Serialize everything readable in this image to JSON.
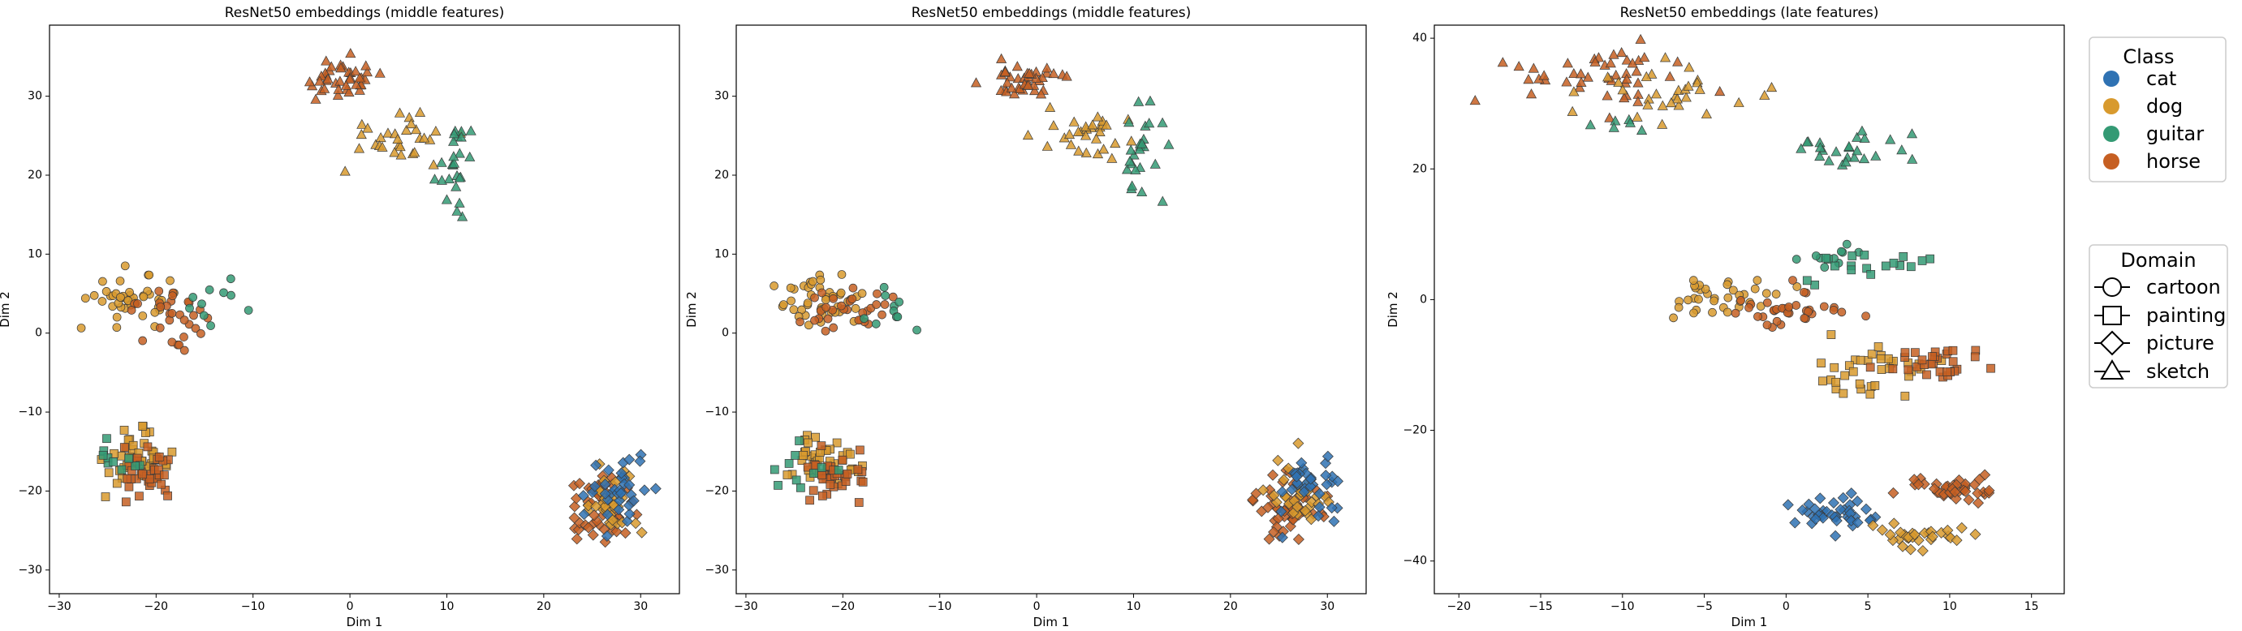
{
  "chart_data": [
    {
      "type": "scatter",
      "title": "ResNet50 embeddings (middle features)",
      "xlabel": "Dim 1",
      "ylabel": "Dim 2",
      "xlim": [
        -31,
        34
      ],
      "ylim": [
        -33,
        39
      ],
      "xticks": [
        -30,
        -20,
        -10,
        0,
        10,
        20,
        30
      ],
      "yticks": [
        -30,
        -20,
        -10,
        0,
        10,
        20,
        30
      ],
      "clusters": [
        {
          "label_class": "horse",
          "domain": "sketch",
          "center": [
            -1,
            32
          ],
          "spread": [
            4,
            2.5
          ],
          "n": 40
        },
        {
          "label_class": "dog",
          "domain": "sketch",
          "center": [
            5,
            25
          ],
          "spread": [
            5,
            3
          ],
          "n": 30
        },
        {
          "label_class": "guitar",
          "domain": "sketch",
          "center": [
            11,
            22
          ],
          "spread": [
            2,
            5
          ],
          "n": 25
        },
        {
          "label_class": "dog",
          "domain": "cartoon",
          "center": [
            -22,
            4
          ],
          "spread": [
            4,
            3
          ],
          "n": 45
        },
        {
          "label_class": "horse",
          "domain": "cartoon",
          "center": [
            -19,
            3
          ],
          "spread": [
            4,
            3
          ],
          "n": 30
        },
        {
          "label_class": "guitar",
          "domain": "cartoon",
          "center": [
            -14,
            3
          ],
          "spread": [
            3,
            3
          ],
          "n": 10
        },
        {
          "label_class": "dog",
          "domain": "painting",
          "center": [
            -22,
            -16
          ],
          "spread": [
            3,
            3
          ],
          "n": 40
        },
        {
          "label_class": "horse",
          "domain": "painting",
          "center": [
            -21,
            -18
          ],
          "spread": [
            3,
            3
          ],
          "n": 35
        },
        {
          "label_class": "guitar",
          "domain": "painting",
          "center": [
            -24,
            -17
          ],
          "spread": [
            3,
            3
          ],
          "n": 10
        },
        {
          "label_class": "horse",
          "domain": "picture",
          "center": [
            26,
            -22
          ],
          "spread": [
            3,
            4
          ],
          "n": 50
        },
        {
          "label_class": "dog",
          "domain": "picture",
          "center": [
            27,
            -21
          ],
          "spread": [
            3,
            4
          ],
          "n": 30
        },
        {
          "label_class": "cat",
          "domain": "picture",
          "center": [
            28,
            -20
          ],
          "spread": [
            3,
            4
          ],
          "n": 35
        }
      ]
    },
    {
      "type": "scatter",
      "title": "ResNet50 embeddings (middle features)",
      "xlabel": "Dim 1",
      "ylabel": "Dim 2",
      "xlim": [
        -31,
        34
      ],
      "ylim": [
        -33,
        39
      ],
      "xticks": [
        -30,
        -20,
        -10,
        0,
        10,
        20,
        30
      ],
      "yticks": [
        -30,
        -20,
        -10,
        0,
        10,
        20,
        30
      ],
      "clusters": [
        {
          "label_class": "horse",
          "domain": "sketch",
          "center": [
            -1,
            32
          ],
          "spread": [
            4,
            2.5
          ],
          "n": 40
        },
        {
          "label_class": "dog",
          "domain": "sketch",
          "center": [
            5,
            25
          ],
          "spread": [
            5,
            3
          ],
          "n": 30
        },
        {
          "label_class": "guitar",
          "domain": "sketch",
          "center": [
            11,
            22
          ],
          "spread": [
            2,
            5
          ],
          "n": 25
        },
        {
          "label_class": "dog",
          "domain": "cartoon",
          "center": [
            -22,
            4
          ],
          "spread": [
            4,
            3
          ],
          "n": 45
        },
        {
          "label_class": "horse",
          "domain": "cartoon",
          "center": [
            -19,
            3
          ],
          "spread": [
            4,
            3
          ],
          "n": 30
        },
        {
          "label_class": "guitar",
          "domain": "cartoon",
          "center": [
            -14,
            3
          ],
          "spread": [
            3,
            3
          ],
          "n": 10
        },
        {
          "label_class": "dog",
          "domain": "painting",
          "center": [
            -22,
            -16
          ],
          "spread": [
            3,
            3
          ],
          "n": 40
        },
        {
          "label_class": "horse",
          "domain": "painting",
          "center": [
            -21,
            -18
          ],
          "spread": [
            3,
            3
          ],
          "n": 35
        },
        {
          "label_class": "guitar",
          "domain": "painting",
          "center": [
            -24,
            -17
          ],
          "spread": [
            3,
            3
          ],
          "n": 10
        },
        {
          "label_class": "horse",
          "domain": "picture",
          "center": [
            26,
            -22
          ],
          "spread": [
            3,
            4
          ],
          "n": 50
        },
        {
          "label_class": "dog",
          "domain": "picture",
          "center": [
            27,
            -21
          ],
          "spread": [
            3,
            4
          ],
          "n": 30
        },
        {
          "label_class": "cat",
          "domain": "picture",
          "center": [
            28,
            -20
          ],
          "spread": [
            3,
            4
          ],
          "n": 35
        }
      ]
    },
    {
      "type": "scatter",
      "title": "ResNet50 embeddings (late features)",
      "xlabel": "Dim 1",
      "ylabel": "Dim 2",
      "xlim": [
        -21.5,
        17
      ],
      "ylim": [
        -45,
        42
      ],
      "xticks": [
        -20,
        -15,
        -10,
        -5,
        0,
        5,
        10,
        15
      ],
      "yticks": [
        -40,
        -20,
        0,
        20,
        40
      ],
      "clusters": [
        {
          "label_class": "horse",
          "domain": "sketch",
          "center": [
            -12,
            34
          ],
          "spread": [
            5,
            4
          ],
          "n": 45
        },
        {
          "label_class": "dog",
          "domain": "sketch",
          "center": [
            -8,
            31
          ],
          "spread": [
            5,
            4
          ],
          "n": 30
        },
        {
          "label_class": "guitar",
          "domain": "sketch",
          "center": [
            4,
            23
          ],
          "spread": [
            3,
            2.5
          ],
          "n": 25
        },
        {
          "label_class": "guitar",
          "domain": "sketch",
          "center": [
            -11,
            27
          ],
          "spread": [
            1.5,
            1.5
          ],
          "n": 6
        },
        {
          "label_class": "dog",
          "domain": "cartoon",
          "center": [
            -4,
            0
          ],
          "spread": [
            3,
            3
          ],
          "n": 35
        },
        {
          "label_class": "horse",
          "domain": "cartoon",
          "center": [
            0,
            -2
          ],
          "spread": [
            3,
            3
          ],
          "n": 35
        },
        {
          "label_class": "guitar",
          "domain": "cartoon",
          "center": [
            3,
            6
          ],
          "spread": [
            3,
            3
          ],
          "n": 10
        },
        {
          "label_class": "dog",
          "domain": "painting",
          "center": [
            5,
            -10
          ],
          "spread": [
            4,
            4
          ],
          "n": 35
        },
        {
          "label_class": "horse",
          "domain": "painting",
          "center": [
            9,
            -10
          ],
          "spread": [
            3,
            3
          ],
          "n": 30
        },
        {
          "label_class": "guitar",
          "domain": "painting",
          "center": [
            5,
            5
          ],
          "spread": [
            4,
            4
          ],
          "n": 18
        },
        {
          "label_class": "cat",
          "domain": "picture",
          "center": [
            3,
            -33
          ],
          "spread": [
            2.5,
            2.5
          ],
          "n": 40
        },
        {
          "label_class": "horse",
          "domain": "picture",
          "center": [
            10,
            -29
          ],
          "spread": [
            3,
            2
          ],
          "n": 40
        },
        {
          "label_class": "dog",
          "domain": "picture",
          "center": [
            8,
            -36
          ],
          "spread": [
            3,
            2
          ],
          "n": 30
        }
      ]
    }
  ],
  "legend": {
    "class_title": "Class",
    "classes": [
      {
        "name": "cat",
        "color": "#2f72b3"
      },
      {
        "name": "dog",
        "color": "#d89a2e"
      },
      {
        "name": "guitar",
        "color": "#349a74"
      },
      {
        "name": "horse",
        "color": "#c65f22"
      }
    ],
    "domain_title": "Domain",
    "domains": [
      {
        "name": "cartoon",
        "marker": "circle"
      },
      {
        "name": "painting",
        "marker": "square"
      },
      {
        "name": "picture",
        "marker": "diamond"
      },
      {
        "name": "sketch",
        "marker": "triangle"
      }
    ]
  }
}
